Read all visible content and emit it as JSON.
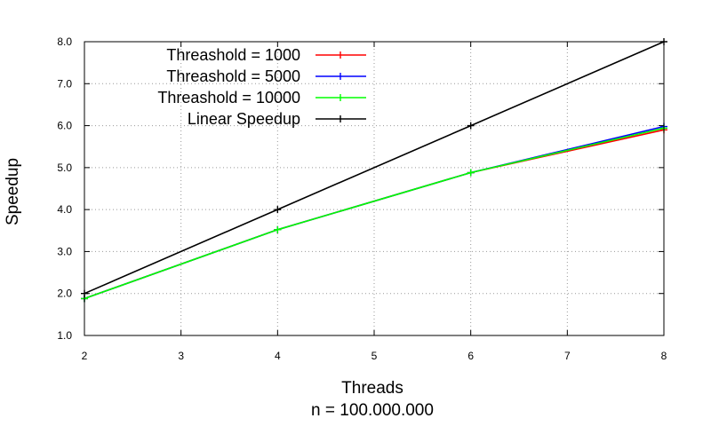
{
  "chart_data": {
    "type": "line",
    "title": "",
    "xlabel": "Threads",
    "xlabel2": "n = 100.000.000",
    "ylabel": "Speedup",
    "xlim": [
      2,
      8
    ],
    "ylim": [
      1.0,
      8.0
    ],
    "xticks": [
      "2",
      "3",
      "4",
      "5",
      "6",
      "7",
      "8"
    ],
    "yticks": [
      "1.0",
      "2.0",
      "3.0",
      "4.0",
      "5.0",
      "6.0",
      "7.0",
      "8.0"
    ],
    "grid": true,
    "legend_position": "top-left",
    "series": [
      {
        "name": "Threashold = 1000",
        "color": "#ff0000",
        "x": [
          2,
          4,
          6,
          8
        ],
        "y": [
          1.88,
          3.52,
          4.88,
          5.9
        ]
      },
      {
        "name": "Threashold = 5000",
        "color": "#0000ff",
        "x": [
          2,
          4,
          6,
          8
        ],
        "y": [
          1.88,
          3.52,
          4.88,
          5.98
        ]
      },
      {
        "name": "Threashold = 10000",
        "color": "#00ff00",
        "x": [
          2,
          4,
          6,
          8
        ],
        "y": [
          1.88,
          3.52,
          4.88,
          5.94
        ]
      },
      {
        "name": "Linear Speedup",
        "color": "#000000",
        "x": [
          2,
          4,
          6,
          8
        ],
        "y": [
          2.0,
          4.0,
          6.0,
          8.0
        ]
      }
    ]
  }
}
